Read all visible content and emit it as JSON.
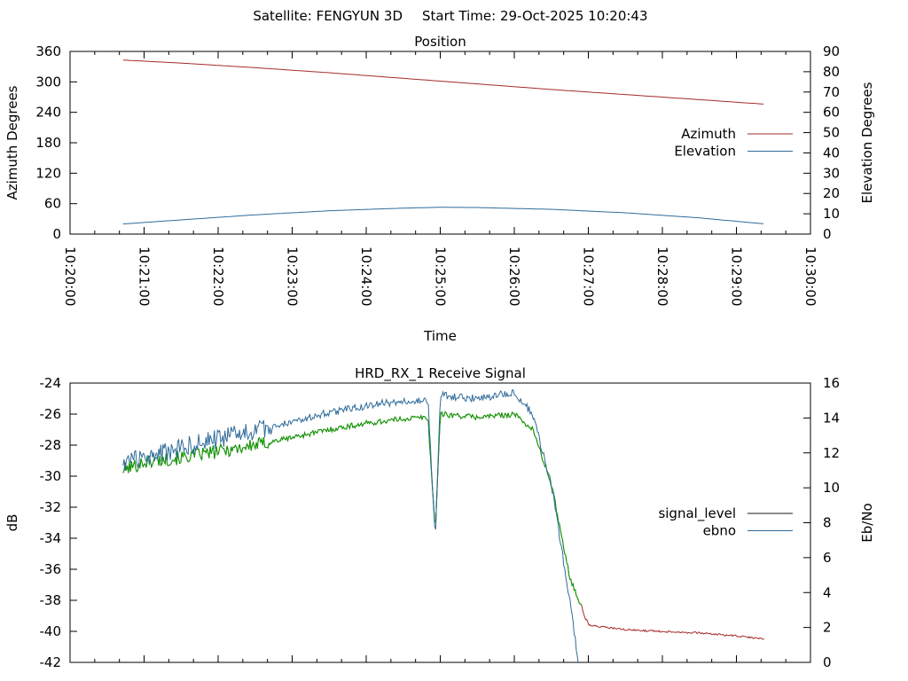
{
  "header": {
    "satellite_label": "Satellite: FENGYUN 3D",
    "start_time_label": "Start Time: 29-Oct-2025 10:20:43"
  },
  "colors": {
    "azimuth": "#a52a2a",
    "elevation": "#2f6b9a",
    "signal_level": "#1a1a1a",
    "ebno": "#2f6b9a",
    "signal_green": "#00a000"
  },
  "chart_data": [
    {
      "type": "line",
      "title": "Position",
      "xlabel": "Time",
      "ylabel": "Azimuth Degrees",
      "y2label": "Elevation Degrees",
      "x_ticks": [
        "10:20:00",
        "10:21:00",
        "10:22:00",
        "10:23:00",
        "10:24:00",
        "10:25:00",
        "10:26:00",
        "10:27:00",
        "10:28:00",
        "10:29:00",
        "10:30:00"
      ],
      "xlim": [
        "10:20:00",
        "10:30:00"
      ],
      "ylim": [
        0,
        360
      ],
      "y_ticks": [
        0,
        60,
        120,
        180,
        240,
        300,
        360
      ],
      "y2lim": [
        0,
        90
      ],
      "y2_ticks": [
        0,
        10,
        20,
        30,
        40,
        50,
        60,
        70,
        80,
        90
      ],
      "legend_position": "right",
      "series": [
        {
          "name": "Azimuth",
          "axis": "y",
          "x": [
            "10:20:43",
            "10:21:30",
            "10:22:30",
            "10:23:30",
            "10:24:30",
            "10:25:30",
            "10:26:30",
            "10:27:30",
            "10:28:30",
            "10:29:23"
          ],
          "values": [
            343,
            337,
            328,
            318,
            307,
            296,
            285,
            275,
            265,
            256
          ]
        },
        {
          "name": "Elevation",
          "axis": "y2",
          "x": [
            "10:20:43",
            "10:21:30",
            "10:22:30",
            "10:23:30",
            "10:24:30",
            "10:25:00",
            "10:25:30",
            "10:26:30",
            "10:27:30",
            "10:28:30",
            "10:29:23"
          ],
          "values": [
            5,
            7,
            9.5,
            11.5,
            12.8,
            13.2,
            13.1,
            12.2,
            10.5,
            8,
            5
          ]
        }
      ]
    },
    {
      "type": "line",
      "title": "HRD_RX_1 Receive Signal",
      "ylabel": "dB",
      "y2label": "Eb/No",
      "xlim": [
        "10:20:00",
        "10:30:00"
      ],
      "ylim": [
        -42,
        -24
      ],
      "y_ticks": [
        -42,
        -40,
        -38,
        -36,
        -34,
        -32,
        -30,
        -28,
        -26,
        -24
      ],
      "y2lim": [
        0,
        16
      ],
      "y2_ticks": [
        0,
        2,
        4,
        6,
        8,
        10,
        12,
        14,
        16
      ],
      "legend_position": "right",
      "series": [
        {
          "name": "signal_level",
          "axis": "y",
          "x": [
            "10:20:43",
            "10:21:00",
            "10:21:30",
            "10:22:00",
            "10:22:30",
            "10:23:00",
            "10:23:30",
            "10:24:00",
            "10:24:30",
            "10:24:50",
            "10:24:56",
            "10:25:00",
            "10:25:30",
            "10:26:00",
            "10:26:15",
            "10:26:30",
            "10:26:45",
            "10:27:00",
            "10:27:30",
            "10:28:00",
            "10:28:30",
            "10:29:00",
            "10:29:23"
          ],
          "values": [
            -29.6,
            -29.1,
            -28.8,
            -28.4,
            -28.0,
            -27.5,
            -27.0,
            -26.6,
            -26.3,
            -26.2,
            -33.6,
            -26.0,
            -26.2,
            -26.0,
            -27.0,
            -30.5,
            -36.5,
            -39.6,
            -39.9,
            -40.0,
            -40.1,
            -40.3,
            -40.5
          ]
        },
        {
          "name": "ebno",
          "axis": "y2",
          "x": [
            "10:20:43",
            "10:21:00",
            "10:21:30",
            "10:22:00",
            "10:22:30",
            "10:23:00",
            "10:23:30",
            "10:24:00",
            "10:24:30",
            "10:24:50",
            "10:24:56",
            "10:25:00",
            "10:25:30",
            "10:26:00",
            "10:26:15",
            "10:26:30",
            "10:26:45",
            "10:26:52"
          ],
          "values": [
            11.5,
            11.7,
            12.3,
            12.8,
            13.3,
            13.8,
            14.3,
            14.7,
            15.0,
            15.0,
            7.0,
            15.3,
            15.1,
            15.5,
            14.2,
            10.2,
            3.5,
            0
          ]
        }
      ]
    }
  ]
}
